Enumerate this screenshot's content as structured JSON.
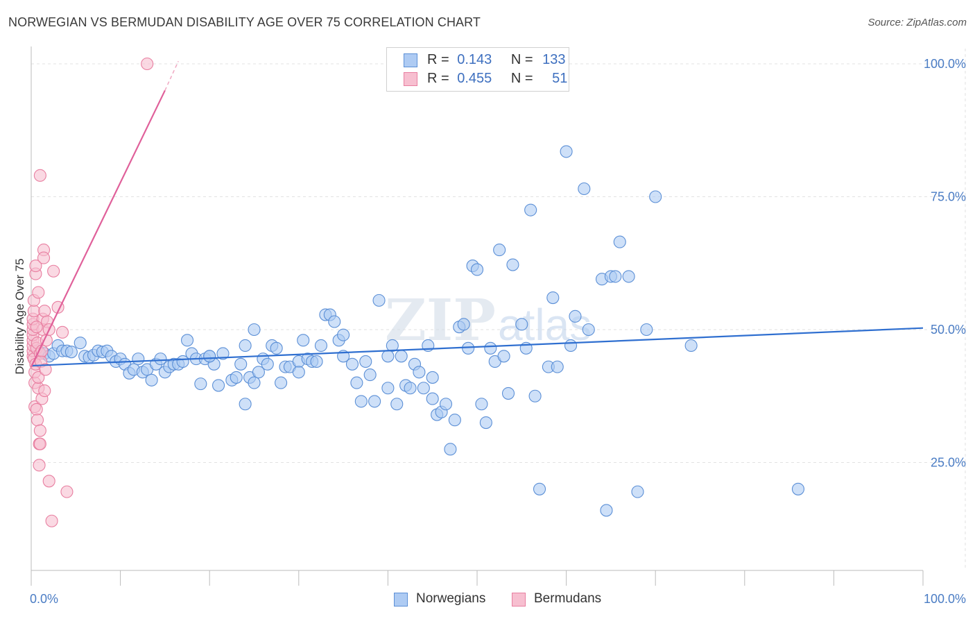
{
  "title": "NORWEGIAN VS BERMUDAN DISABILITY AGE OVER 75 CORRELATION CHART",
  "source": "Source: ZipAtlas.com",
  "watermark": "ZIPatlas",
  "legend": {
    "rows": [
      {
        "r_label": "R =",
        "r_value": "0.143",
        "n_label": "N =",
        "n_value": "133"
      },
      {
        "r_label": "R =",
        "r_value": "0.455",
        "n_label": "N =",
        "n_value": "51"
      }
    ]
  },
  "bottom_legend": [
    "Norwegians",
    "Bermudans"
  ],
  "colors": {
    "norwegians_fill": "#aecbf3",
    "norwegians_stroke": "#5b8fd6",
    "norwegians_line": "#2f6fd0",
    "bermudans_fill": "#f7bfd0",
    "bermudans_stroke": "#e87ea0",
    "bermudans_line": "#e0609a",
    "grid": "#e2e2e2",
    "tick_label": "#4a7cc4"
  },
  "chart_data": {
    "type": "scatter",
    "title": "NORWEGIAN VS BERMUDAN DISABILITY AGE OVER 75 CORRELATION CHART",
    "xlabel": "",
    "ylabel": "Disability Age Over 75",
    "xlim": [
      0,
      100
    ],
    "ylim": [
      0,
      102
    ],
    "x_tick_labels": [
      "0.0%",
      "100.0%"
    ],
    "y_ticks": [
      25,
      50,
      75,
      100
    ],
    "y_tick_labels": [
      "25.0%",
      "50.0%",
      "75.0%",
      "100.0%"
    ],
    "grid": true,
    "legend_position": "top-center",
    "series": [
      {
        "name": "Norwegians",
        "r": 0.143,
        "n": 133,
        "trend": {
          "x0": 0,
          "y0": 43.2,
          "x1": 100,
          "y1": 50.3
        },
        "points": [
          [
            0.8,
            46
          ],
          [
            1.5,
            45.5
          ],
          [
            2,
            45
          ],
          [
            2.5,
            45.5
          ],
          [
            3,
            47
          ],
          [
            3.5,
            46
          ],
          [
            4,
            46
          ],
          [
            4.5,
            45.8
          ],
          [
            5.5,
            47.5
          ],
          [
            6,
            45
          ],
          [
            6.5,
            44.8
          ],
          [
            7,
            45.2
          ],
          [
            7.5,
            46
          ],
          [
            8,
            45.8
          ],
          [
            8.5,
            46
          ],
          [
            9,
            45
          ],
          [
            9.5,
            44
          ],
          [
            10,
            44.5
          ],
          [
            10.5,
            43.5
          ],
          [
            11,
            41.8
          ],
          [
            11.5,
            42.5
          ],
          [
            12,
            44.5
          ],
          [
            12.5,
            42
          ],
          [
            13,
            42.5
          ],
          [
            13.5,
            40.5
          ],
          [
            14,
            43.5
          ],
          [
            14.5,
            44.5
          ],
          [
            15,
            42
          ],
          [
            15.5,
            43
          ],
          [
            16,
            43.5
          ],
          [
            16.5,
            43.5
          ],
          [
            17,
            44
          ],
          [
            17.5,
            48
          ],
          [
            18,
            45.5
          ],
          [
            18.5,
            44.5
          ],
          [
            19,
            39.8
          ],
          [
            19.5,
            44.5
          ],
          [
            20,
            45
          ],
          [
            20.5,
            43.5
          ],
          [
            21,
            39.5
          ],
          [
            21.5,
            45.5
          ],
          [
            22.5,
            40.5
          ],
          [
            23,
            41
          ],
          [
            23.5,
            43.5
          ],
          [
            24,
            47
          ],
          [
            24.5,
            41
          ],
          [
            25,
            50
          ],
          [
            25.5,
            42
          ],
          [
            26,
            44.5
          ],
          [
            26.5,
            43.5
          ],
          [
            27,
            47
          ],
          [
            27.5,
            46.5
          ],
          [
            28,
            40
          ],
          [
            28.5,
            43
          ],
          [
            29,
            43
          ],
          [
            30,
            44
          ],
          [
            30.5,
            48
          ],
          [
            31,
            44.5
          ],
          [
            31.5,
            44
          ],
          [
            32,
            44
          ],
          [
            32.5,
            47
          ],
          [
            33,
            52.8
          ],
          [
            33.5,
            52.8
          ],
          [
            34,
            51.5
          ],
          [
            34.5,
            48
          ],
          [
            35,
            49
          ],
          [
            36,
            43.5
          ],
          [
            36.5,
            40
          ],
          [
            37,
            36.5
          ],
          [
            37.5,
            44
          ],
          [
            38,
            41.5
          ],
          [
            38.5,
            36.5
          ],
          [
            39,
            55.5
          ],
          [
            40,
            45
          ],
          [
            40.5,
            47
          ],
          [
            41,
            36
          ],
          [
            41.5,
            45
          ],
          [
            42,
            39.5
          ],
          [
            42.5,
            39
          ],
          [
            43,
            43.5
          ],
          [
            43.5,
            42
          ],
          [
            44,
            39
          ],
          [
            44.5,
            47
          ],
          [
            45,
            37
          ],
          [
            45.5,
            34
          ],
          [
            46,
            34.5
          ],
          [
            46.5,
            36
          ],
          [
            47,
            27.5
          ],
          [
            47.5,
            33
          ],
          [
            48,
            50.5
          ],
          [
            48.5,
            51
          ],
          [
            49,
            46.5
          ],
          [
            49.5,
            62
          ],
          [
            50,
            61.3
          ],
          [
            50.5,
            36
          ],
          [
            51,
            32.5
          ],
          [
            51.5,
            46.5
          ],
          [
            52,
            44
          ],
          [
            52.5,
            65
          ],
          [
            53,
            45
          ],
          [
            53.5,
            38
          ],
          [
            54,
            62.2
          ],
          [
            55,
            51
          ],
          [
            55.5,
            46.5
          ],
          [
            56,
            72.5
          ],
          [
            56.5,
            37.5
          ],
          [
            57,
            20
          ],
          [
            58,
            43
          ],
          [
            58.5,
            56
          ],
          [
            59,
            43
          ],
          [
            60,
            83.5
          ],
          [
            60.5,
            47
          ],
          [
            61,
            52.5
          ],
          [
            62,
            76.5
          ],
          [
            62.5,
            50
          ],
          [
            64,
            59.5
          ],
          [
            64.5,
            16
          ],
          [
            65,
            60
          ],
          [
            65.5,
            60
          ],
          [
            66,
            66.5
          ],
          [
            67,
            60
          ],
          [
            68,
            19.5
          ],
          [
            69,
            50
          ],
          [
            70,
            75
          ],
          [
            74,
            47
          ],
          [
            86,
            20
          ],
          [
            20,
            45
          ],
          [
            25,
            40
          ],
          [
            30,
            42
          ],
          [
            35,
            45
          ],
          [
            40,
            39
          ],
          [
            45,
            41
          ],
          [
            24,
            36
          ]
        ]
      },
      {
        "name": "Bermudans",
        "r": 0.455,
        "n": 51,
        "trend": {
          "x0": 0,
          "y0": 43,
          "x1": 15,
          "y1": 95
        },
        "trend_dashed_to": {
          "x": 16.5,
          "y": 100.5
        },
        "points": [
          [
            0.2,
            45
          ],
          [
            0.2,
            46
          ],
          [
            0.2,
            47
          ],
          [
            0.2,
            48
          ],
          [
            0.2,
            49
          ],
          [
            0.2,
            50
          ],
          [
            0.2,
            51
          ],
          [
            0.2,
            52
          ],
          [
            0.3,
            44.5
          ],
          [
            0.3,
            53.5
          ],
          [
            0.3,
            55.5
          ],
          [
            0.4,
            40
          ],
          [
            0.4,
            42
          ],
          [
            0.4,
            35.5
          ],
          [
            0.5,
            60.5
          ],
          [
            0.5,
            62
          ],
          [
            0.5,
            43.5
          ],
          [
            0.6,
            35
          ],
          [
            0.6,
            46.5
          ],
          [
            0.7,
            33
          ],
          [
            0.7,
            47.5
          ],
          [
            0.8,
            39
          ],
          [
            0.8,
            41
          ],
          [
            0.8,
            57
          ],
          [
            0.9,
            28.5
          ],
          [
            0.9,
            24.5
          ],
          [
            1,
            79
          ],
          [
            1,
            31
          ],
          [
            1,
            28.5
          ],
          [
            1,
            45.5
          ],
          [
            1.1,
            44
          ],
          [
            1.2,
            37
          ],
          [
            1.3,
            52
          ],
          [
            1.3,
            50
          ],
          [
            1.4,
            65
          ],
          [
            1.4,
            63.5
          ],
          [
            1.5,
            53.5
          ],
          [
            1.5,
            38.5
          ],
          [
            1.6,
            42.5
          ],
          [
            1.7,
            48
          ],
          [
            1.8,
            51.5
          ],
          [
            2,
            50
          ],
          [
            2,
            21.5
          ],
          [
            2.3,
            14
          ],
          [
            2.5,
            61
          ],
          [
            3,
            54.2
          ],
          [
            3.5,
            49.5
          ],
          [
            4,
            19.5
          ],
          [
            13,
            100
          ],
          [
            0.6,
            50.5
          ],
          [
            1.2,
            46
          ]
        ]
      }
    ]
  }
}
